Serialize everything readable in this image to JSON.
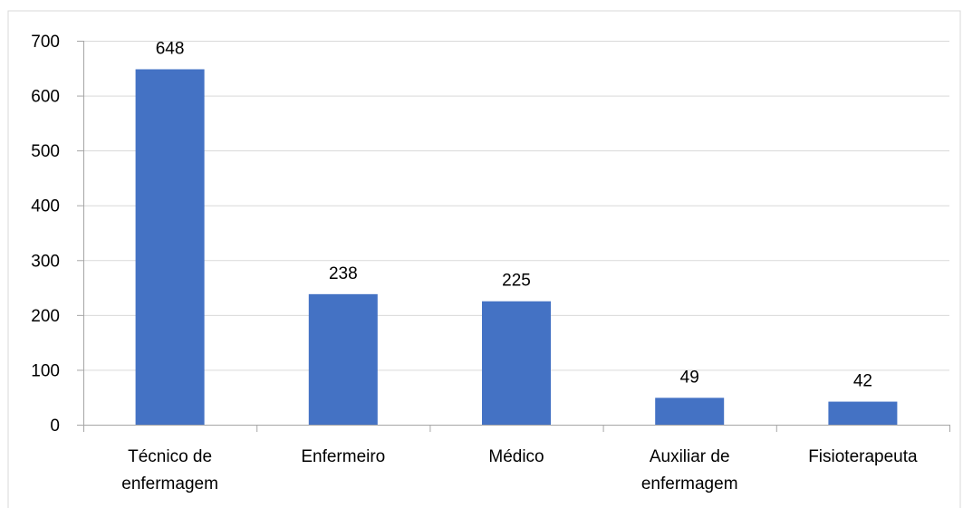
{
  "chart_data": {
    "type": "bar",
    "categories": [
      "Técnico de enfermagem",
      "Enfermeiro",
      "Médico",
      "Auxiliar de enfermagem",
      "Fisioterapeuta"
    ],
    "category_lines": [
      [
        "Técnico de",
        "enfermagem"
      ],
      [
        "Enfermeiro"
      ],
      [
        "Médico"
      ],
      [
        "Auxiliar de",
        "enfermagem"
      ],
      [
        "Fisioterapeuta"
      ]
    ],
    "series": [
      {
        "values": [
          648,
          238,
          225,
          49,
          42
        ]
      }
    ],
    "data_labels": [
      "648",
      "238",
      "225",
      "49",
      "42"
    ],
    "ylim": [
      0,
      700
    ],
    "yticks": [
      0,
      100,
      200,
      300,
      400,
      500,
      600,
      700
    ],
    "title": "",
    "xlabel": "",
    "ylabel": "",
    "grid": true,
    "legend": "none",
    "bar_color": "#4472C4",
    "grid_color": "#D9D9D9",
    "axis_color": "#A6A6A6",
    "border_color": "#D9D9D9"
  }
}
